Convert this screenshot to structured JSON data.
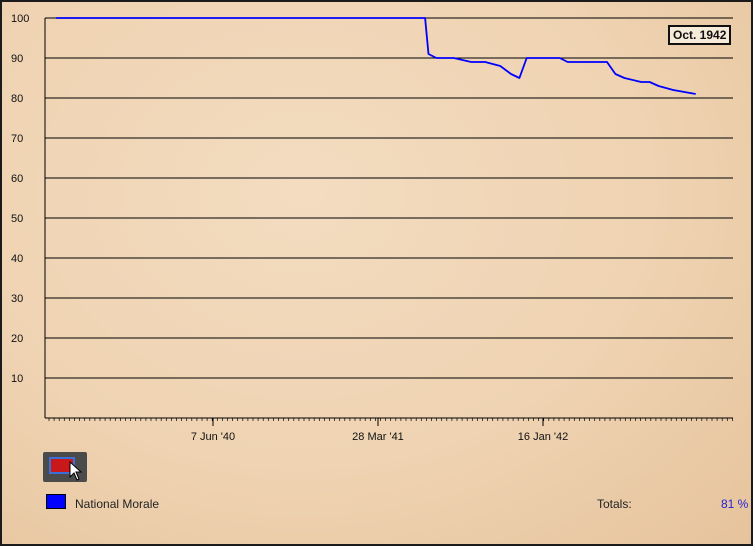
{
  "chart_data": {
    "type": "line",
    "x_ticks": [
      "7 Jun '40",
      "28 Mar '41",
      "16 Jan '42"
    ],
    "y_ticks": [
      "100",
      "90",
      "80",
      "70",
      "60",
      "50",
      "40",
      "30",
      "20",
      "10"
    ],
    "ylim": [
      0,
      100
    ],
    "grid": true,
    "series": [
      {
        "name": "National Morale",
        "color": "#0000ff",
        "x": [
          "1939-09-01",
          "1940-06-07",
          "1941-03-28",
          "1941-06-20",
          "1941-06-26",
          "1941-07-10",
          "1941-08-10",
          "1941-09-10",
          "1941-10-05",
          "1941-11-01",
          "1941-11-20",
          "1941-12-05",
          "1941-12-18",
          "1941-12-30",
          "1942-01-10",
          "1942-02-15",
          "1942-03-01",
          "1942-04-05",
          "1942-04-20",
          "1942-05-10",
          "1942-05-25",
          "1942-06-10",
          "1942-07-10",
          "1942-07-25",
          "1942-08-10",
          "1942-09-05",
          "1942-10-15"
        ],
        "values": [
          100,
          100,
          100,
          100,
          91,
          90,
          90,
          89,
          89,
          88,
          86,
          85,
          90,
          90,
          90,
          90,
          89,
          89,
          89,
          89,
          86,
          85,
          84,
          84,
          83,
          82,
          81
        ]
      }
    ]
  },
  "date_label": "Oct. 1942",
  "nation_button_icon": "flag-icon",
  "legend": {
    "label": "National Morale",
    "color": "#0000ff"
  },
  "totals": {
    "label": "Totals:",
    "value": "81 %"
  }
}
